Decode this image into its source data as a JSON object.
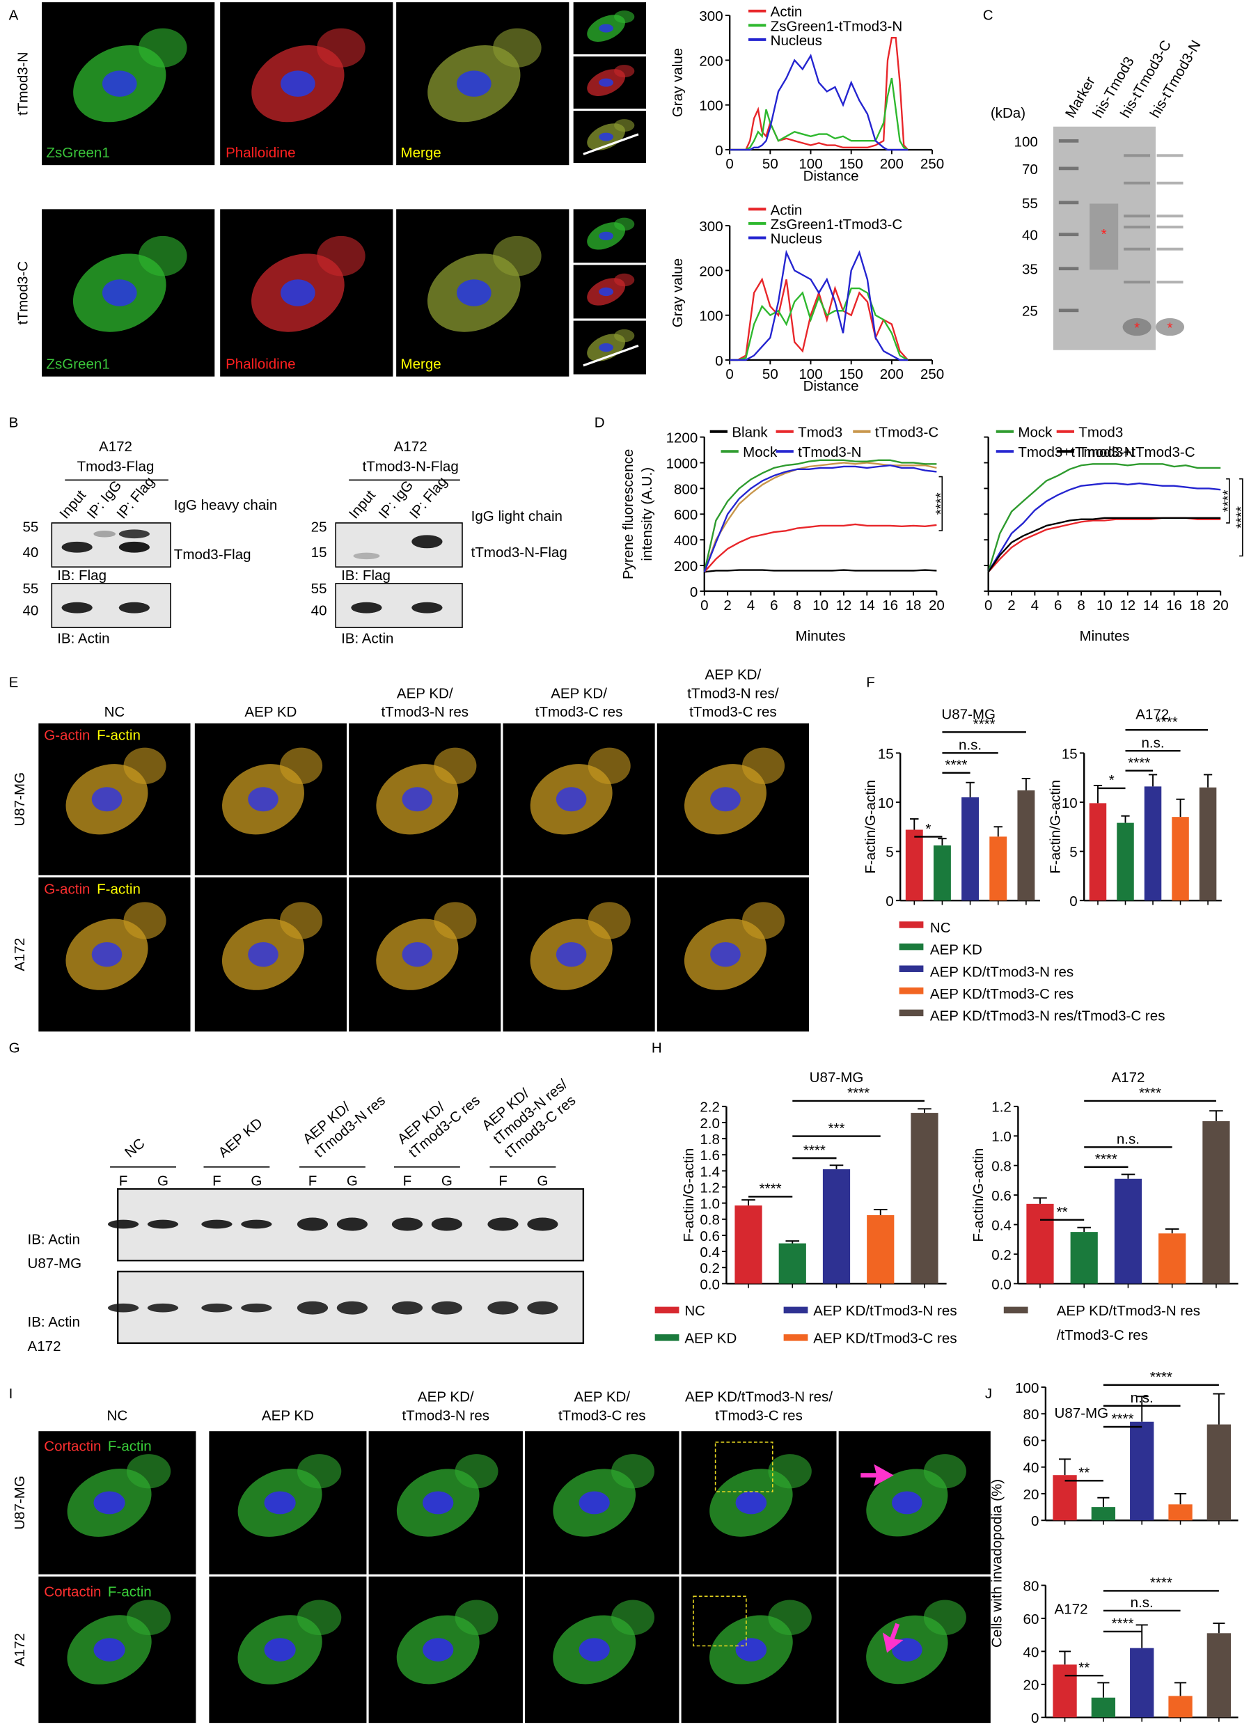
{
  "panel_labels": [
    "A",
    "B",
    "C",
    "D",
    "E",
    "F",
    "G",
    "H",
    "I",
    "J"
  ],
  "panel_a": {
    "rows": [
      "tTmod3-N",
      "tTmod3-C"
    ],
    "channels": [
      "ZsGreen1",
      "Phalloidine",
      "Merge"
    ]
  },
  "panel_b": {
    "blots": [
      {
        "cell": "A172",
        "construct": "Tmod3-Flag",
        "lanes": [
          "Input",
          "IP: IgG",
          "IP: Flag"
        ],
        "top_markers": [
          55,
          40
        ],
        "bands": [
          "IgG heavy chain",
          "Tmod3-Flag"
        ],
        "top_ib": "IB: Flag",
        "bottom_markers": [
          55,
          40
        ],
        "bottom_ib": "IB: Actin"
      },
      {
        "cell": "A172",
        "construct": "tTmod3-N-Flag",
        "lanes": [
          "Input",
          "IP: IgG",
          "IP: Flag"
        ],
        "top_markers": [
          25,
          15
        ],
        "bands": [
          "IgG light chain",
          "tTmod3-N-Flag"
        ],
        "top_ib": "IB: Flag",
        "bottom_markers": [
          55,
          40
        ],
        "bottom_ib": "IB: Actin"
      }
    ]
  },
  "panel_c": {
    "lanes": [
      "Marker",
      "his-Tmod3",
      "his-tTmod3-C",
      "his-tTmod3-N"
    ],
    "unit": "(kDa)",
    "markers": [
      100,
      70,
      55,
      40,
      35,
      25
    ],
    "asterisks": [
      "*",
      "*",
      "*"
    ]
  },
  "panel_e": {
    "columns": [
      [
        "NC"
      ],
      [
        "AEP KD"
      ],
      [
        "AEP KD/",
        "tTmod3-N res"
      ],
      [
        "AEP KD/",
        "tTmod3-C res"
      ],
      [
        "AEP KD/",
        "tTmod3-N res/",
        "tTmod3-C res"
      ]
    ],
    "rows": [
      "U87-MG",
      "A172"
    ],
    "stains": [
      "G-actin",
      "F-actin"
    ]
  },
  "panel_g": {
    "columns": [
      [
        "NC"
      ],
      [
        "AEP KD"
      ],
      [
        "AEP KD/",
        "tTmod3-N res"
      ],
      [
        "AEP KD/",
        "tTmod3-C res"
      ],
      [
        "AEP KD/",
        "tTmod3-N res/",
        "tTmod3-C res"
      ]
    ],
    "lane_labels": [
      "F",
      "G"
    ],
    "blots": [
      [
        "IB: Actin",
        "U87-MG"
      ],
      [
        "IB: Actin",
        "A172"
      ]
    ]
  },
  "panel_i": {
    "columns": [
      [
        "NC"
      ],
      [
        "AEP KD"
      ],
      [
        "AEP KD/",
        "tTmod3-N res"
      ],
      [
        "AEP KD/",
        "tTmod3-C res"
      ],
      [
        "AEP KD/tTmod3-N res/",
        "tTmod3-C res"
      ]
    ],
    "rows": [
      "U87-MG",
      "A172"
    ],
    "stains": [
      "Cortactin",
      "F-actin"
    ]
  },
  "legend_f": [
    {
      "name": "NC",
      "color": "#d7282f"
    },
    {
      "name": "AEP KD",
      "color": "#1a7a3c"
    },
    {
      "name": "AEP KD/tTmod3-N res",
      "color": "#2e3192"
    },
    {
      "name": "AEP KD/tTmod3-C res",
      "color": "#f26522"
    },
    {
      "name": "AEP KD/tTmod3-N res/tTmod3-C res",
      "color": "#5b4c43"
    }
  ],
  "legend_h": [
    {
      "name": "NC",
      "color": "#d7282f"
    },
    {
      "name": "AEP KD",
      "color": "#1a7a3c"
    },
    {
      "name": "AEP KD/tTmod3-N res",
      "color": "#2e3192"
    },
    {
      "name": "AEP KD/tTmod3-C res",
      "color": "#f26522"
    },
    {
      "name": [
        "AEP KD/tTmod3-N res",
        "/tTmod3-C res"
      ],
      "color": "#5b4c43"
    }
  ],
  "chart_data": [
    {
      "type": "line",
      "xlabel": "Distance",
      "ylabel": "Gray value",
      "xlim": [
        0,
        250
      ],
      "xticks": [
        0,
        50,
        100,
        150,
        200,
        250
      ],
      "ylim": [
        0,
        300
      ],
      "yticks": [
        0,
        100,
        200,
        300
      ],
      "x": [
        0,
        20,
        25,
        30,
        35,
        40,
        45,
        50,
        60,
        70,
        80,
        90,
        100,
        110,
        120,
        130,
        140,
        150,
        160,
        170,
        180,
        190,
        195,
        200,
        205,
        210,
        215,
        220
      ],
      "series": [
        {
          "name": "Actin",
          "color": "#e8262a",
          "values": [
            0,
            0,
            20,
            70,
            90,
            40,
            30,
            60,
            20,
            25,
            20,
            15,
            10,
            15,
            10,
            10,
            5,
            5,
            5,
            5,
            10,
            20,
            200,
            250,
            250,
            150,
            10,
            0
          ]
        },
        {
          "name": "ZsGreen1-tTmod3-N",
          "color": "#2eb82e",
          "values": [
            0,
            0,
            5,
            20,
            40,
            30,
            90,
            60,
            20,
            30,
            40,
            35,
            30,
            35,
            35,
            25,
            30,
            20,
            20,
            20,
            20,
            60,
            120,
            160,
            90,
            20,
            5,
            0
          ]
        },
        {
          "name": "Nucleus",
          "color": "#2424d0",
          "values": [
            0,
            0,
            0,
            5,
            5,
            10,
            20,
            50,
            130,
            160,
            200,
            180,
            210,
            150,
            130,
            140,
            100,
            150,
            110,
            80,
            20,
            5,
            0,
            0,
            0,
            0,
            0,
            0
          ]
        }
      ]
    },
    {
      "type": "line",
      "xlabel": "Distance",
      "ylabel": "Gray value",
      "xlim": [
        0,
        250
      ],
      "xticks": [
        0,
        50,
        100,
        150,
        200,
        250
      ],
      "ylim": [
        0,
        300
      ],
      "yticks": [
        0,
        100,
        200,
        300
      ],
      "x": [
        0,
        10,
        20,
        30,
        40,
        50,
        60,
        70,
        80,
        90,
        100,
        110,
        120,
        130,
        140,
        150,
        160,
        170,
        180,
        190,
        200,
        210,
        220
      ],
      "series": [
        {
          "name": "Actin",
          "color": "#e8262a",
          "values": [
            0,
            0,
            10,
            150,
            180,
            120,
            100,
            180,
            40,
            20,
            100,
            150,
            90,
            160,
            110,
            100,
            150,
            130,
            50,
            90,
            80,
            20,
            0
          ]
        },
        {
          "name": "ZsGreen1-tTmod3-C",
          "color": "#2eb82e",
          "values": [
            0,
            0,
            5,
            80,
            120,
            100,
            110,
            80,
            130,
            150,
            90,
            140,
            100,
            110,
            110,
            160,
            160,
            150,
            100,
            90,
            60,
            10,
            0
          ]
        },
        {
          "name": "Nucleus",
          "color": "#2424d0",
          "values": [
            0,
            0,
            0,
            10,
            30,
            50,
            130,
            240,
            200,
            190,
            180,
            150,
            180,
            130,
            60,
            200,
            240,
            180,
            50,
            20,
            10,
            0,
            0
          ]
        }
      ]
    },
    {
      "type": "line",
      "xlabel": "Minutes",
      "ylabel": [
        "Pyrene fluorescence",
        "intensity (A.U.)"
      ],
      "xlim": [
        0,
        20
      ],
      "xticks": [
        0,
        2,
        4,
        6,
        8,
        10,
        12,
        14,
        16,
        18,
        20
      ],
      "ylim": [
        0,
        1200
      ],
      "yticks": [
        0,
        200,
        400,
        600,
        800,
        1000,
        1200
      ],
      "x": [
        0,
        1,
        2,
        3,
        4,
        5,
        6,
        7,
        8,
        9,
        10,
        11,
        12,
        13,
        14,
        15,
        16,
        17,
        18,
        19,
        20
      ],
      "annotations": [
        "****"
      ],
      "series": [
        {
          "name": "Blank",
          "color": "#000000",
          "values": [
            150,
            160,
            160,
            165,
            165,
            165,
            160,
            160,
            160,
            160,
            160,
            160,
            165,
            160,
            160,
            160,
            160,
            160,
            160,
            165,
            160
          ]
        },
        {
          "name": "Tmod3",
          "color": "#e8262a",
          "values": [
            150,
            250,
            330,
            380,
            420,
            440,
            460,
            470,
            490,
            500,
            510,
            510,
            510,
            520,
            510,
            510,
            510,
            505,
            510,
            505,
            515
          ]
        },
        {
          "name": "tTmod3-C",
          "color": "#c8964b",
          "values": [
            150,
            400,
            550,
            680,
            760,
            830,
            880,
            920,
            950,
            970,
            980,
            990,
            1000,
            990,
            1000,
            990,
            980,
            980,
            980,
            980,
            960
          ]
        },
        {
          "name": "Mock",
          "color": "#2e9b2e",
          "values": [
            150,
            550,
            700,
            800,
            870,
            920,
            960,
            980,
            990,
            1010,
            1020,
            1020,
            1020,
            1010,
            1010,
            1020,
            1020,
            1000,
            1000,
            990,
            990
          ]
        },
        {
          "name": "tTmod3-N",
          "color": "#2424d0",
          "values": [
            150,
            380,
            600,
            720,
            800,
            860,
            900,
            930,
            950,
            950,
            960,
            960,
            970,
            970,
            960,
            970,
            980,
            960,
            960,
            940,
            930
          ]
        }
      ]
    },
    {
      "type": "line",
      "xlabel": "Minutes",
      "xlim": [
        0,
        20
      ],
      "xticks": [
        0,
        2,
        4,
        6,
        8,
        10,
        12,
        14,
        16,
        18,
        20
      ],
      "ylim": [
        0,
        1200
      ],
      "yticks": [
        0,
        200,
        400,
        600,
        800,
        1000,
        1200
      ],
      "ytick_labels": false,
      "x": [
        0,
        1,
        2,
        3,
        4,
        5,
        6,
        7,
        8,
        9,
        10,
        11,
        12,
        13,
        14,
        15,
        16,
        17,
        18,
        19,
        20
      ],
      "annotations": [
        "****",
        "****"
      ],
      "series": [
        {
          "name": "Mock",
          "color": "#2e9b2e",
          "values": [
            150,
            450,
            620,
            700,
            780,
            860,
            900,
            950,
            980,
            990,
            990,
            990,
            980,
            990,
            990,
            990,
            970,
            980,
            960,
            960,
            960
          ]
        },
        {
          "name": "Tmod3",
          "color": "#e8262a",
          "values": [
            150,
            250,
            340,
            400,
            440,
            480,
            500,
            520,
            540,
            550,
            550,
            560,
            560,
            560,
            560,
            570,
            570,
            570,
            560,
            560,
            560
          ]
        },
        {
          "name": "Tmod3+tTmod3-N",
          "color": "#2424d0",
          "values": [
            150,
            300,
            450,
            530,
            630,
            700,
            750,
            790,
            820,
            830,
            840,
            840,
            830,
            840,
            830,
            820,
            820,
            810,
            800,
            800,
            790
          ]
        },
        {
          "name": "Tmod3+tTmod3-C",
          "color": "#000000",
          "values": [
            150,
            280,
            380,
            430,
            470,
            510,
            530,
            550,
            560,
            560,
            570,
            570,
            570,
            570,
            570,
            570,
            570,
            570,
            570,
            570,
            570
          ]
        }
      ]
    },
    {
      "type": "bar",
      "title": "U87-MG",
      "ylabel": "F-actin/G-actin",
      "ylim": [
        0,
        15
      ],
      "yticks": [
        0,
        5,
        10,
        15
      ],
      "values": [
        7.2,
        5.6,
        10.5,
        6.5,
        11.2
      ],
      "errors": [
        1.1,
        0.7,
        1.5,
        1.0,
        1.2
      ],
      "colors": [
        "#d7282f",
        "#1a7a3c",
        "#2e3192",
        "#f26522",
        "#5b4c43"
      ],
      "annotations": [
        "****",
        "n.s.",
        "****",
        "*"
      ]
    },
    {
      "type": "bar",
      "title": "A172",
      "ylabel": "F-actin/G-actin",
      "ylim": [
        0,
        15
      ],
      "yticks": [
        0,
        5,
        10,
        15
      ],
      "values": [
        9.9,
        7.9,
        11.6,
        8.5,
        11.5
      ],
      "errors": [
        1.8,
        0.7,
        1.2,
        1.8,
        1.3
      ],
      "colors": [
        "#d7282f",
        "#1a7a3c",
        "#2e3192",
        "#f26522",
        "#5b4c43"
      ],
      "annotations": [
        "****",
        "n.s.",
        "****",
        "*"
      ]
    },
    {
      "type": "bar",
      "title": "U87-MG",
      "ylabel": "F-actin/G-actin",
      "ylim": [
        0,
        2.2
      ],
      "yticks": [
        {
          "value": 0,
          "label": "0.0"
        },
        0.2,
        0.4,
        0.6,
        0.8,
        {
          "value": 1,
          "label": "1.0"
        },
        1.2,
        1.4,
        1.6,
        1.8,
        {
          "value": 2,
          "label": "2.0"
        },
        2.2
      ],
      "values": [
        0.97,
        0.5,
        1.42,
        0.85,
        2.12
      ],
      "errors": [
        0.07,
        0.03,
        0.05,
        0.07,
        0.05
      ],
      "colors": [
        "#d7282f",
        "#1a7a3c",
        "#2e3192",
        "#f26522",
        "#5b4c43"
      ],
      "annotations": [
        "****",
        "***",
        "****",
        "****"
      ]
    },
    {
      "type": "bar",
      "title": "A172",
      "ylabel": "F-actin/G-actin",
      "ylim": [
        0,
        1.2
      ],
      "yticks": [
        {
          "value": 0,
          "label": "0.0"
        },
        0.2,
        0.4,
        0.6,
        0.8,
        {
          "value": 1,
          "label": "1.0"
        },
        1.2
      ],
      "values": [
        0.54,
        0.35,
        0.71,
        0.34,
        1.1
      ],
      "errors": [
        0.04,
        0.03,
        0.03,
        0.03,
        0.07
      ],
      "colors": [
        "#d7282f",
        "#1a7a3c",
        "#2e3192",
        "#f26522",
        "#5b4c43"
      ],
      "annotations": [
        "****",
        "n.s.",
        "****",
        "**"
      ]
    },
    {
      "type": "bar",
      "title": "U87-MG",
      "ylabel": "Cells with invadopodia (%)",
      "ylim": [
        0,
        100
      ],
      "yticks": [
        0,
        20,
        40,
        60,
        80,
        100
      ],
      "values": [
        34,
        10,
        74,
        12,
        72
      ],
      "errors": [
        12,
        7,
        19,
        8,
        23
      ],
      "colors": [
        "#d7282f",
        "#1a7a3c",
        "#2e3192",
        "#f26522",
        "#5b4c43"
      ],
      "annotations": [
        "****",
        "n.s.",
        "****",
        "**"
      ]
    },
    {
      "type": "bar",
      "title": "A172",
      "ylim": [
        0,
        80
      ],
      "yticks": [
        0,
        20,
        40,
        60,
        80
      ],
      "values": [
        32,
        12,
        42,
        13,
        51
      ],
      "errors": [
        8,
        9,
        14,
        8,
        6
      ],
      "colors": [
        "#d7282f",
        "#1a7a3c",
        "#2e3192",
        "#f26522",
        "#5b4c43"
      ],
      "annotations": [
        "****",
        "n.s.",
        "****",
        "**"
      ]
    }
  ]
}
